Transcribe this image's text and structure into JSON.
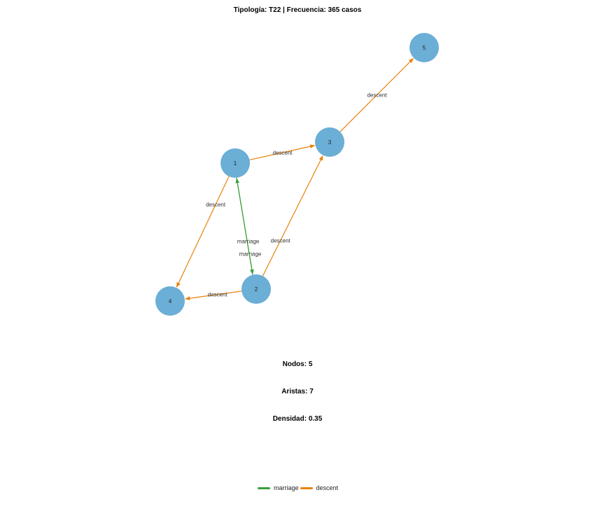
{
  "title": "Tipología: T22 | Frecuencia: 365 casos",
  "colors": {
    "node_fill": "#6baed6",
    "marriage": "#3aa03a",
    "descent": "#e8820c"
  },
  "nodes": [
    {
      "id": "1",
      "label": "1"
    },
    {
      "id": "2",
      "label": "2"
    },
    {
      "id": "3",
      "label": "3"
    },
    {
      "id": "4",
      "label": "4"
    },
    {
      "id": "5",
      "label": "5"
    }
  ],
  "edges": [
    {
      "from": "1",
      "to": "3",
      "type": "descent",
      "label": "descent"
    },
    {
      "from": "3",
      "to": "5",
      "type": "descent",
      "label": "descent"
    },
    {
      "from": "1",
      "to": "4",
      "type": "descent",
      "label": "descent"
    },
    {
      "from": "2",
      "to": "3",
      "type": "descent",
      "label": "descent"
    },
    {
      "from": "2",
      "to": "4",
      "type": "descent",
      "label": "descent"
    },
    {
      "from": "2",
      "to": "1",
      "type": "marriage",
      "label": "marriage"
    },
    {
      "from": "1",
      "to": "2",
      "type": "marriage",
      "label": "marriage"
    }
  ],
  "stats": {
    "nodes": "Nodos: 5",
    "edges": "Aristas: 7",
    "density": "Densidad: 0.35"
  },
  "legend": [
    {
      "label": "marriage",
      "type": "marriage"
    },
    {
      "label": "descent",
      "type": "descent"
    }
  ]
}
